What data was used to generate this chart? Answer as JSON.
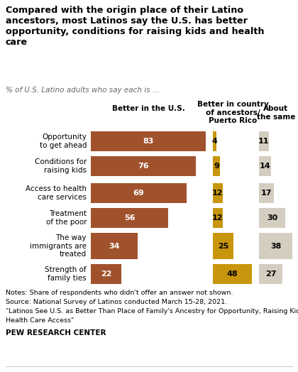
{
  "title": "Compared with the origin place of their Latino\nancestors, most Latinos say the U.S. has better\nopportunity, conditions for raising kids and health\ncare",
  "subtitle": "% of U.S. Latino adults who say each is ...",
  "categories": [
    "Opportunity\nto get ahead",
    "Conditions for\nraising kids",
    "Access to health\ncare services",
    "Treatment\nof the poor",
    "The way\nimmigrants are\ntreated",
    "Strength of\nfamily ties"
  ],
  "col1_label": "Better in the U.S.",
  "col2_label": "Better in country\nof ancestors/\nPuerto Rico",
  "col3_label": "About\nthe same",
  "col1_values": [
    83,
    76,
    69,
    56,
    34,
    22
  ],
  "col2_values": [
    4,
    9,
    12,
    12,
    25,
    48
  ],
  "col3_values": [
    11,
    14,
    17,
    30,
    38,
    27
  ],
  "col1_color": "#A0522D",
  "col2_color": "#C8960C",
  "col3_color": "#D3CEC0",
  "col1_text_color": "#FFFFFF",
  "col2_text_color": "#000000",
  "col3_text_color": "#000000",
  "note1": "Notes: Share of respondents who didn't offer an answer not shown.",
  "note2": "Source: National Survey of Latinos conducted March 15-28, 2021.",
  "note3": "\"Latinos See U.S. as Better Than Place of Family's Ancestry for Opportunity, Raising Kids,",
  "note4": "Health Care Access\"",
  "footer": "PEW RESEARCH CENTER",
  "background_color": "#FFFFFF"
}
